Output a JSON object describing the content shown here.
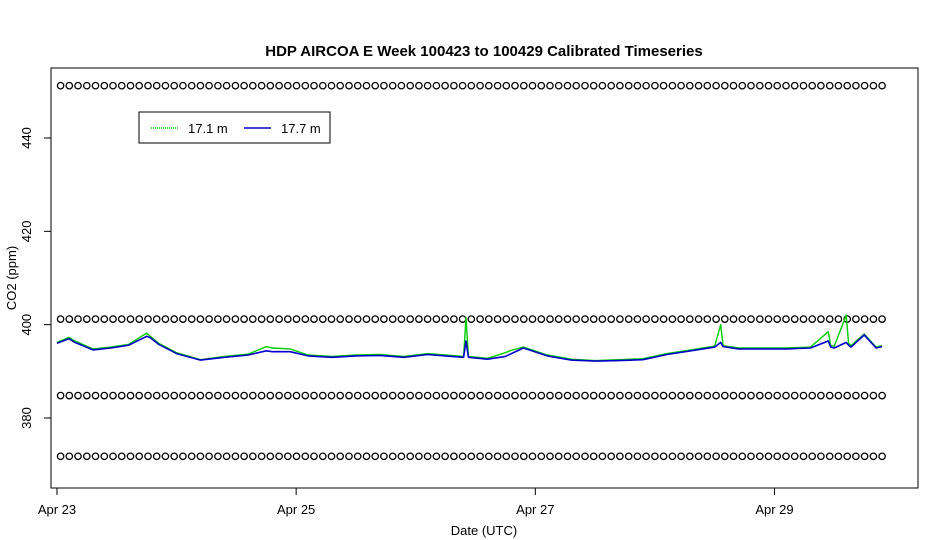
{
  "chart_data": {
    "type": "line",
    "title": "HDP AIRCOA E  Week 100423 to 100429  Calibrated Timeseries",
    "xlabel": "Date (UTC)",
    "ylabel": "CO2 (ppm)",
    "xlim": [
      -0.05,
      7.2
    ],
    "ylim": [
      365,
      455
    ],
    "x_ticks": [
      {
        "value": 0,
        "label": "Apr 23"
      },
      {
        "value": 2,
        "label": "Apr 25"
      },
      {
        "value": 4,
        "label": "Apr 27"
      },
      {
        "value": 6,
        "label": "Apr 29"
      }
    ],
    "y_ticks": [
      {
        "value": 380,
        "label": "380"
      },
      {
        "value": 400,
        "label": "400"
      },
      {
        "value": 420,
        "label": "420"
      },
      {
        "value": 440,
        "label": "440"
      }
    ],
    "legend_position": "top-left",
    "series": [
      {
        "name": "17.1 m",
        "color": "#00cc00",
        "x": [
          0,
          0.1,
          0.15,
          0.3,
          0.45,
          0.6,
          0.75,
          0.78,
          0.85,
          1.0,
          1.2,
          1.4,
          1.6,
          1.75,
          1.8,
          1.95,
          2.1,
          2.3,
          2.5,
          2.7,
          2.9,
          3.1,
          3.3,
          3.4,
          3.42,
          3.44,
          3.6,
          3.75,
          3.8,
          3.9,
          4.1,
          4.3,
          4.5,
          4.7,
          4.9,
          5.1,
          5.3,
          5.5,
          5.55,
          5.57,
          5.7,
          5.9,
          6.1,
          6.3,
          6.45,
          6.47,
          6.5,
          6.6,
          6.62,
          6.64,
          6.75,
          6.85,
          6.9
        ],
        "y": [
          396.2,
          397.3,
          396.5,
          394.8,
          395.2,
          395.8,
          398.2,
          397.5,
          396.0,
          394.0,
          392.5,
          393.2,
          393.7,
          395.3,
          395.0,
          394.8,
          393.5,
          393.2,
          393.5,
          393.6,
          393.2,
          393.8,
          393.4,
          393.2,
          401.5,
          393.2,
          392.8,
          394.0,
          394.5,
          395.2,
          393.5,
          392.6,
          392.3,
          392.5,
          392.7,
          393.8,
          394.6,
          395.4,
          400.0,
          395.5,
          395.0,
          395.0,
          395.0,
          395.2,
          398.5,
          395.5,
          395.4,
          402.0,
          396.0,
          395.5,
          398.0,
          395.2,
          395.5
        ]
      },
      {
        "name": "17.7 m",
        "color": "#0000cc",
        "x": [
          0,
          0.1,
          0.15,
          0.3,
          0.45,
          0.6,
          0.75,
          0.78,
          0.85,
          1.0,
          1.2,
          1.4,
          1.6,
          1.75,
          1.8,
          1.95,
          2.1,
          2.3,
          2.5,
          2.7,
          2.9,
          3.1,
          3.3,
          3.4,
          3.42,
          3.44,
          3.6,
          3.75,
          3.8,
          3.9,
          4.1,
          4.3,
          4.5,
          4.7,
          4.9,
          5.1,
          5.3,
          5.5,
          5.55,
          5.57,
          5.7,
          5.9,
          6.1,
          6.3,
          6.45,
          6.47,
          6.5,
          6.6,
          6.62,
          6.64,
          6.75,
          6.85,
          6.9
        ],
        "y": [
          396.0,
          397.0,
          396.2,
          394.6,
          395.0,
          395.6,
          397.5,
          397.2,
          395.8,
          393.8,
          392.4,
          393.0,
          393.5,
          394.4,
          394.2,
          394.2,
          393.3,
          393.0,
          393.3,
          393.4,
          393.0,
          393.6,
          393.2,
          393.0,
          396.5,
          393.0,
          392.6,
          393.2,
          393.8,
          395.0,
          393.3,
          392.4,
          392.2,
          392.3,
          392.5,
          393.6,
          394.4,
          395.2,
          396.2,
          395.3,
          394.8,
          394.8,
          394.8,
          395.0,
          396.5,
          395.2,
          395.0,
          396.2,
          395.6,
          395.2,
          397.8,
          395.0,
          395.3
        ]
      }
    ],
    "marker_rows": [
      {
        "y": 451.2
      },
      {
        "y": 401.2
      },
      {
        "y": 384.8
      },
      {
        "y": 371.8
      }
    ],
    "marker_x_range": [
      0.03,
      6.9
    ],
    "marker_count": 95
  }
}
